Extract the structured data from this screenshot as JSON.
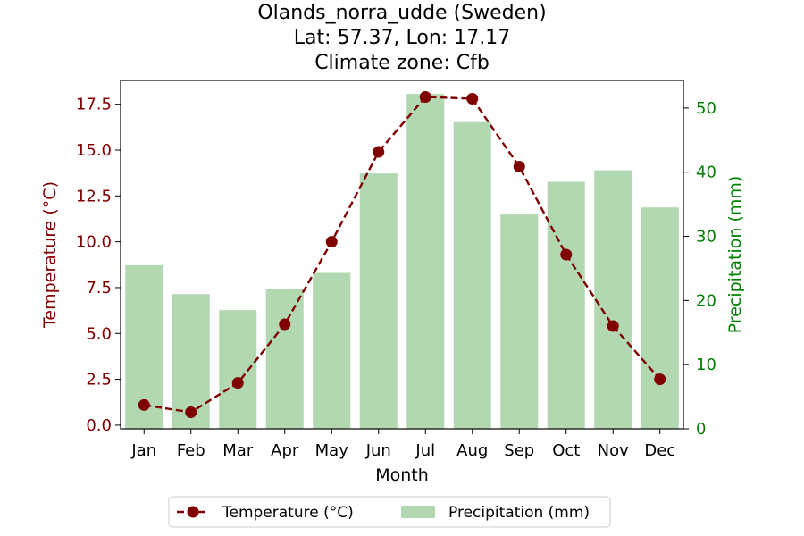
{
  "chart_data": {
    "type": "bar+line",
    "title": [
      "Olands_norra_udde (Sweden)",
      "Lat: 57.37, Lon: 17.17",
      "Climate zone: Cfb"
    ],
    "categories": [
      "Jan",
      "Feb",
      "Mar",
      "Apr",
      "May",
      "Jun",
      "Jul",
      "Aug",
      "Sep",
      "Oct",
      "Nov",
      "Dec"
    ],
    "xlabel": "Month",
    "series": [
      {
        "name": "Temperature (°C)",
        "kind": "line",
        "axis": "left",
        "color": "#800000",
        "values": [
          1.1,
          0.7,
          2.3,
          5.5,
          10.0,
          14.9,
          17.9,
          17.8,
          14.1,
          9.3,
          5.4,
          2.5
        ]
      },
      {
        "name": "Precipitation (mm)",
        "kind": "bar",
        "axis": "right",
        "color": "#b2d8b2",
        "values": [
          25.5,
          21.0,
          18.5,
          21.8,
          24.3,
          39.8,
          52.2,
          47.8,
          33.4,
          38.5,
          40.3,
          34.5
        ]
      }
    ],
    "y_left": {
      "label": "Temperature (°C)",
      "color": "#800000",
      "range": [
        -0.2,
        18.8
      ],
      "ticks": [
        "0.0",
        "2.5",
        "5.0",
        "7.5",
        "10.0",
        "12.5",
        "15.0",
        "17.5"
      ]
    },
    "y_right": {
      "label": "Precipitation (mm)",
      "color": "#008000",
      "range": [
        0,
        54.3
      ],
      "ticks": [
        "0",
        "10",
        "20",
        "30",
        "40",
        "50"
      ]
    },
    "legend": {
      "position": "bottom-center",
      "entries": [
        "Temperature (°C)",
        "Precipitation (mm)"
      ]
    },
    "grid": false
  }
}
